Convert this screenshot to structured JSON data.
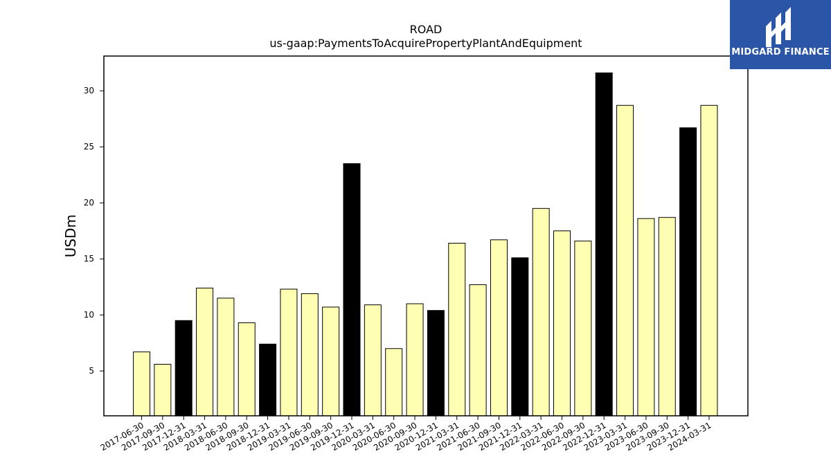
{
  "chart_data": {
    "type": "bar",
    "title": "ROAD",
    "subtitle": "us-gaap:PaymentsToAcquirePropertyPlantAndEquipment",
    "xlabel": "",
    "ylabel": "USDm",
    "ylim": [
      1,
      33.1
    ],
    "yticks": [
      5,
      10,
      15,
      20,
      25,
      30
    ],
    "categories": [
      "2017-06-30",
      "2017-09-30",
      "2017-12-31",
      "2018-03-31",
      "2018-06-30",
      "2018-09-30",
      "2018-12-31",
      "2019-03-31",
      "2019-06-30",
      "2019-09-30",
      "2019-12-31",
      "2020-03-31",
      "2020-06-30",
      "2020-09-30",
      "2020-12-31",
      "2021-03-31",
      "2021-06-30",
      "2021-09-30",
      "2021-12-31",
      "2022-03-31",
      "2022-06-30",
      "2022-09-30",
      "2022-12-31",
      "2023-03-31",
      "2023-06-30",
      "2023-09-30",
      "2023-12-31",
      "2024-03-31"
    ],
    "values": [
      6.7,
      5.6,
      9.5,
      12.4,
      11.5,
      9.3,
      7.4,
      12.3,
      11.9,
      10.7,
      23.5,
      10.9,
      7.0,
      11.0,
      10.4,
      16.4,
      12.7,
      16.7,
      15.1,
      19.5,
      17.5,
      16.6,
      31.6,
      28.7,
      18.6,
      18.7,
      26.7,
      28.7
    ],
    "colors": {
      "quarter": "#ffffb3",
      "year_end": "#000000",
      "edge": "#000000"
    },
    "grid": false,
    "legend": "none"
  },
  "logo": {
    "text": "MIDGARD FINANCE",
    "background": "#2b56a8"
  }
}
